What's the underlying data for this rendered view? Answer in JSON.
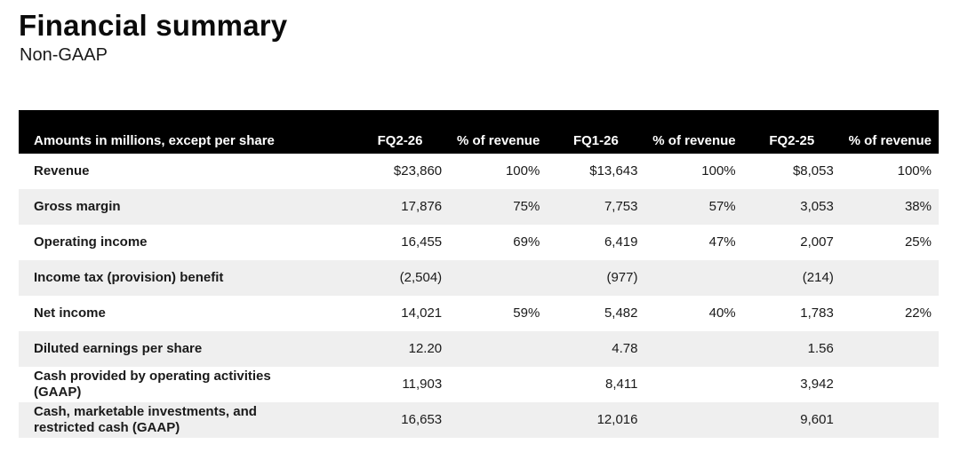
{
  "page": {
    "title": "Financial summary",
    "subtitle": "Non-GAAP"
  },
  "colors": {
    "header_bg": "#000000",
    "header_text": "#ffffff",
    "stripe_bg": "#efefef",
    "text": "#1a1a1a"
  },
  "table": {
    "header": {
      "label": "Amounts in millions, except per share",
      "columns": [
        "FQ2-26",
        "% of revenue",
        "FQ1-26",
        "% of revenue",
        "FQ2-25",
        "% of revenue"
      ]
    },
    "rows": [
      {
        "label": "Revenue",
        "values": [
          "$23,860",
          "100%",
          "$13,643",
          "100%",
          "$8,053",
          "100%"
        ]
      },
      {
        "label": "Gross margin",
        "values": [
          "17,876",
          "75%",
          "7,753",
          "57%",
          "3,053",
          "38%"
        ]
      },
      {
        "label": "Operating income",
        "values": [
          "16,455",
          "69%",
          "6,419",
          "47%",
          "2,007",
          "25%"
        ]
      },
      {
        "label": "Income tax (provision) benefit",
        "values": [
          "(2,504)",
          "",
          "(977)",
          "",
          "(214)",
          ""
        ]
      },
      {
        "label": "Net income",
        "values": [
          "14,021",
          "59%",
          "5,482",
          "40%",
          "1,783",
          "22%"
        ]
      },
      {
        "label": "Diluted earnings per share",
        "values": [
          "12.20",
          "",
          "4.78",
          "",
          "1.56",
          ""
        ]
      },
      {
        "label": "Cash provided by operating activities (GAAP)",
        "values": [
          "11,903",
          "",
          "8,411",
          "",
          "3,942",
          ""
        ]
      },
      {
        "label": "Cash, marketable investments, and restricted cash (GAAP)",
        "values": [
          "16,653",
          "",
          "12,016",
          "",
          "9,601",
          ""
        ]
      }
    ]
  }
}
